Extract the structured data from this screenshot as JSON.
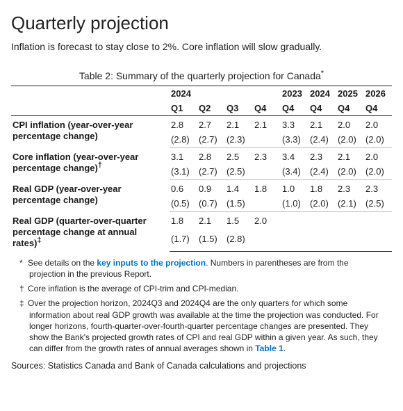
{
  "heading": "Quarterly projection",
  "subtitle": "Inflation is forecast to stay close to 2%. Core inflation will slow gradually.",
  "caption_prefix": "Table 2: Summary of the quarterly projection for Canada",
  "caption_marker": "*",
  "years": [
    "2024",
    "2023",
    "2024",
    "2025",
    "2026"
  ],
  "quarters": [
    "Q1",
    "Q2",
    "Q3",
    "Q4",
    "Q4",
    "Q4",
    "Q4",
    "Q4"
  ],
  "rows": [
    {
      "label": "CPI inflation (year-over-year percentage change)",
      "sup": "",
      "vals": [
        "2.8",
        "2.7",
        "2.1",
        "2.1",
        "3.3",
        "2.1",
        "2.0",
        "2.0"
      ],
      "paren": [
        "(2.8)",
        "(2.7)",
        "(2.3)",
        "",
        "(3.3)",
        "(2.4)",
        "(2.0)",
        "(2.0)"
      ]
    },
    {
      "label": "Core inflation (year-over-year percentage change)",
      "sup": "†",
      "vals": [
        "3.1",
        "2.8",
        "2.5",
        "2.3",
        "3.4",
        "2.3",
        "2.1",
        "2.0"
      ],
      "paren": [
        "(3.1)",
        "(2.7)",
        "(2.5)",
        "",
        "(3.4)",
        "(2.4)",
        "(2.0)",
        "(2.0)"
      ]
    },
    {
      "label": "Real GDP (year-over-year percentage change)",
      "sup": "",
      "vals": [
        "0.6",
        "0.9",
        "1.4",
        "1.8",
        "1.0",
        "1.8",
        "2.3",
        "2.3"
      ],
      "paren": [
        "(0.5)",
        "(0.7)",
        "(1.5)",
        "",
        "(1.0)",
        "(2.0)",
        "(2.1)",
        "(2.5)"
      ]
    },
    {
      "label": "Real GDP (quarter-over-quarter percentage change at annual rates)",
      "sup": "‡",
      "vals": [
        "1.8",
        "2.1",
        "1.5",
        "2.0",
        "",
        "",
        "",
        ""
      ],
      "paren": [
        "(1.7)",
        "(1.5)",
        "(2.8)",
        "",
        "",
        "",
        "",
        ""
      ]
    }
  ],
  "footnotes": {
    "star_pre": "See details on the ",
    "star_link": "key inputs to the projection",
    "star_post": ". Numbers in parentheses are from the projection in the previous Report.",
    "dagger": "Core inflation is the average of CPI-trim and CPI-median.",
    "ddagger_pre": "Over the projection horizon, 2024Q3 and 2024Q4 are the only quarters for which some information about real GDP growth was available at the time the projection was conducted. For longer horizons, fourth-quarter-over-fourth-quarter percentage changes are presented. They show the Bank's projected growth rates of CPI and real GDP within a given year. As such, they can differ from the growth rates of annual averages shown in ",
    "ddagger_link": "Table 1",
    "ddagger_post": "."
  },
  "markers": {
    "star": "*",
    "dagger": "†",
    "ddagger": "‡"
  },
  "sources": "Sources: Statistics Canada and Bank of Canada calculations and projections"
}
